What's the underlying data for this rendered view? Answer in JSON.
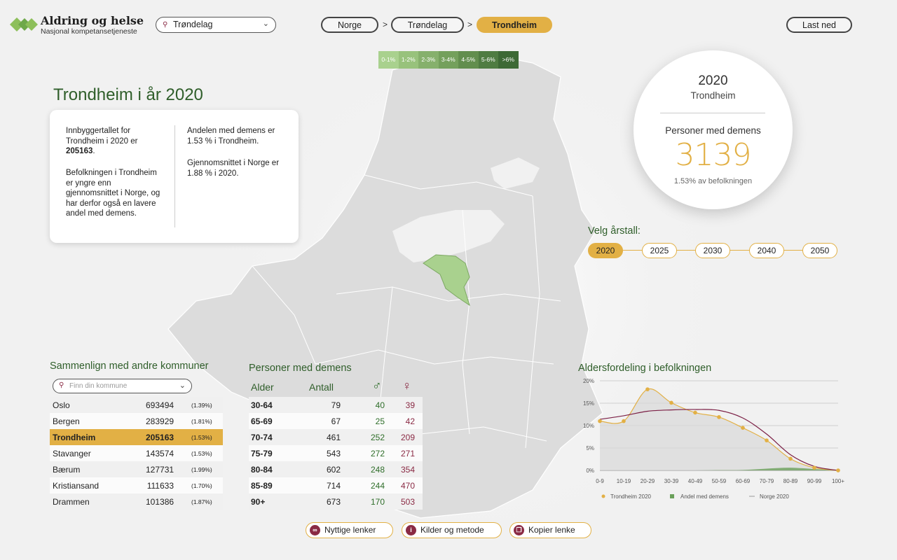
{
  "header": {
    "logo_title": "Aldring og helse",
    "logo_subtitle": "Nasjonal kompetansetjeneste",
    "region_select": "Trøndelag",
    "breadcrumbs": [
      "Norge",
      "Trøndelag",
      "Trondheim"
    ],
    "crumb_separator": ">",
    "download_label": "Last ned"
  },
  "legend": {
    "items": [
      {
        "label": "0-1%",
        "color": "#a9d18e"
      },
      {
        "label": "1-2%",
        "color": "#98c27c"
      },
      {
        "label": "2-3%",
        "color": "#86b06c"
      },
      {
        "label": "3-4%",
        "color": "#74a05c"
      },
      {
        "label": "4-5%",
        "color": "#628e4e"
      },
      {
        "label": "5-6%",
        "color": "#4f7c42"
      },
      {
        "label": ">6%",
        "color": "#3d6935"
      }
    ]
  },
  "title": "Trondheim i år 2020",
  "info": {
    "left_p1_pre": "Innbyggertallet for Trondheim i 2020 er",
    "left_p1_bold": "205163",
    "left_p1_post": ".",
    "left_p2": "Befolkningen i Trondheim er yngre enn gjennomsnittet i Norge, og har derfor også en lavere andel med demens.",
    "right_p1": "Andelen med demens er 1.53 % i Trondheim.",
    "right_p2": "Gjennomsnittet i Norge er 1.88 % i 2020."
  },
  "summary": {
    "year": "2020",
    "place": "Trondheim",
    "label": "Personer med demens",
    "count": "3139",
    "share": "1.53% av befolkningen"
  },
  "years": {
    "title": "Velg årstall:",
    "options": [
      "2020",
      "2025",
      "2030",
      "2040",
      "2050"
    ],
    "selected": "2020"
  },
  "compare": {
    "title": "Sammenlign med andre kommuner",
    "search_placeholder": "Finn din kommune",
    "rows": [
      {
        "name": "Oslo",
        "pop": "693494",
        "pct": "(1.39%)"
      },
      {
        "name": "Bergen",
        "pop": "283929",
        "pct": "(1.81%)"
      },
      {
        "name": "Trondheim",
        "pop": "205163",
        "pct": "(1.53%)"
      },
      {
        "name": "Stavanger",
        "pop": "143574",
        "pct": "(1.53%)"
      },
      {
        "name": "Bærum",
        "pop": "127731",
        "pct": "(1.99%)"
      },
      {
        "name": "Kristiansand",
        "pop": "111633",
        "pct": "(1.70%)"
      },
      {
        "name": "Drammen",
        "pop": "101386",
        "pct": "(1.87%)"
      }
    ],
    "highlight": "Trondheim"
  },
  "persons": {
    "title": "Personer med demens",
    "col_age": "Alder",
    "col_count": "Antall",
    "male_symbol": "♂",
    "female_symbol": "♀",
    "rows": [
      {
        "age": "30-64",
        "count": "79",
        "m": "40",
        "f": "39"
      },
      {
        "age": "65-69",
        "count": "67",
        "m": "25",
        "f": "42"
      },
      {
        "age": "70-74",
        "count": "461",
        "m": "252",
        "f": "209"
      },
      {
        "age": "75-79",
        "count": "543",
        "m": "272",
        "f": "271"
      },
      {
        "age": "80-84",
        "count": "602",
        "m": "248",
        "f": "354"
      },
      {
        "age": "85-89",
        "count": "714",
        "m": "244",
        "f": "470"
      },
      {
        "age": "90+",
        "count": "673",
        "m": "170",
        "f": "503"
      }
    ]
  },
  "chart_data": {
    "type": "line",
    "title": "Aldersfordeling i befolkningen",
    "categories": [
      "0-9",
      "10-19",
      "20-29",
      "30-39",
      "40-49",
      "50-59",
      "60-69",
      "70-79",
      "80-89",
      "90-99",
      "100+"
    ],
    "y_ticks": [
      "0%",
      "5%",
      "10%",
      "15%",
      "20%"
    ],
    "ylim": [
      0,
      20
    ],
    "grid": true,
    "legend_position": "bottom",
    "series": [
      {
        "name": "Trondheim 2020",
        "values": [
          11.0,
          11.0,
          18.1,
          15.1,
          12.9,
          11.9,
          9.5,
          6.7,
          2.6,
          0.6,
          0.0
        ],
        "color": "#e2b045"
      },
      {
        "name": "Andel med demens",
        "values": [
          0.0,
          0.0,
          0.0,
          0.0,
          0.0,
          0.05,
          0.1,
          0.4,
          0.6,
          0.3,
          0.0
        ],
        "color": "#6aa05a"
      },
      {
        "name": "Norge 2020",
        "values": [
          11.4,
          12.2,
          13.2,
          13.5,
          13.6,
          13.4,
          11.7,
          8.1,
          3.5,
          0.9,
          0.0
        ],
        "color": "#7b1f45"
      }
    ]
  },
  "footer": {
    "buttons": [
      {
        "label": "Nyttige lenker",
        "icon": "link-icon"
      },
      {
        "label": "Kilder og metode",
        "icon": "info-icon"
      },
      {
        "label": "Kopier lenke",
        "icon": "copy-icon"
      }
    ]
  }
}
